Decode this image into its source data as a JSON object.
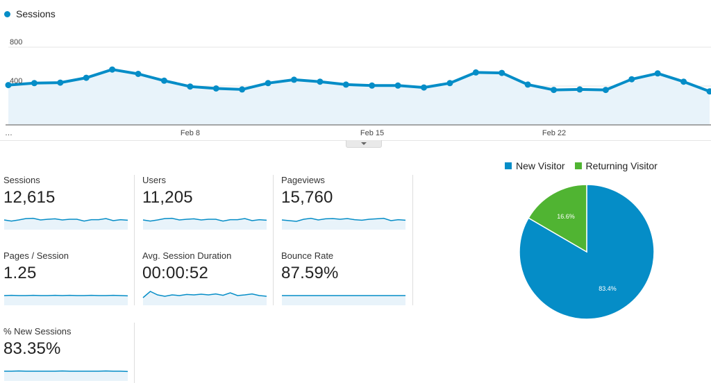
{
  "legend": {
    "series_name": "Sessions",
    "color": "#058dc7"
  },
  "chart_data": {
    "type": "line",
    "series": [
      {
        "name": "Sessions",
        "values": [
          410,
          430,
          435,
          485,
          570,
          525,
          455,
          395,
          375,
          365,
          430,
          465,
          445,
          415,
          405,
          405,
          385,
          430,
          540,
          535,
          415,
          360,
          365,
          360,
          470,
          530,
          445,
          345
        ]
      }
    ],
    "ytick_labels": [
      "800",
      "400"
    ],
    "ylim": [
      0,
      1000
    ],
    "xtick_labels": [
      "…",
      "Feb 8",
      "Feb 15",
      "Feb 22"
    ],
    "color": "#058dc7",
    "fill": "#e8f3fa"
  },
  "metrics": [
    {
      "label": "Sessions",
      "value": "12,615",
      "spark": [
        0.5,
        0.42,
        0.5,
        0.6,
        0.62,
        0.5,
        0.55,
        0.58,
        0.5,
        0.55,
        0.55,
        0.42,
        0.52,
        0.52,
        0.6,
        0.45,
        0.52,
        0.48
      ]
    },
    {
      "label": "Users",
      "value": "11,205",
      "spark": [
        0.5,
        0.42,
        0.5,
        0.6,
        0.62,
        0.5,
        0.55,
        0.58,
        0.5,
        0.55,
        0.55,
        0.42,
        0.52,
        0.52,
        0.6,
        0.45,
        0.52,
        0.48
      ]
    },
    {
      "label": "Pageviews",
      "value": "15,760",
      "spark": [
        0.5,
        0.45,
        0.4,
        0.55,
        0.62,
        0.5,
        0.58,
        0.6,
        0.55,
        0.6,
        0.52,
        0.48,
        0.55,
        0.58,
        0.62,
        0.45,
        0.52,
        0.48
      ]
    },
    {
      "label": "Pages / Session",
      "value": "1.25",
      "spark": [
        0.5,
        0.52,
        0.5,
        0.5,
        0.52,
        0.5,
        0.5,
        0.52,
        0.5,
        0.52,
        0.5,
        0.5,
        0.52,
        0.5,
        0.5,
        0.52,
        0.5,
        0.48
      ]
    },
    {
      "label": "Avg. Session Duration",
      "value": "00:00:52",
      "spark": [
        0.35,
        0.8,
        0.55,
        0.45,
        0.55,
        0.5,
        0.58,
        0.55,
        0.6,
        0.55,
        0.62,
        0.52,
        0.7,
        0.5,
        0.55,
        0.62,
        0.5,
        0.45
      ]
    },
    {
      "label": "Bounce Rate",
      "value": "87.59%",
      "spark": [
        0.5,
        0.5,
        0.5,
        0.5,
        0.5,
        0.5,
        0.5,
        0.5,
        0.5,
        0.5,
        0.5,
        0.5,
        0.5,
        0.5,
        0.5,
        0.5,
        0.5,
        0.5
      ]
    },
    {
      "label": "% New Sessions",
      "value": "83.35%",
      "spark": [
        0.5,
        0.5,
        0.52,
        0.5,
        0.5,
        0.5,
        0.5,
        0.5,
        0.52,
        0.5,
        0.5,
        0.5,
        0.5,
        0.5,
        0.52,
        0.5,
        0.5,
        0.48
      ]
    }
  ],
  "pie": {
    "slices": [
      {
        "name": "New Visitor",
        "value": 83.4,
        "label": "83.4%",
        "color": "#058dc7"
      },
      {
        "name": "Returning Visitor",
        "value": 16.6,
        "label": "16.6%",
        "color": "#50b432"
      }
    ]
  }
}
